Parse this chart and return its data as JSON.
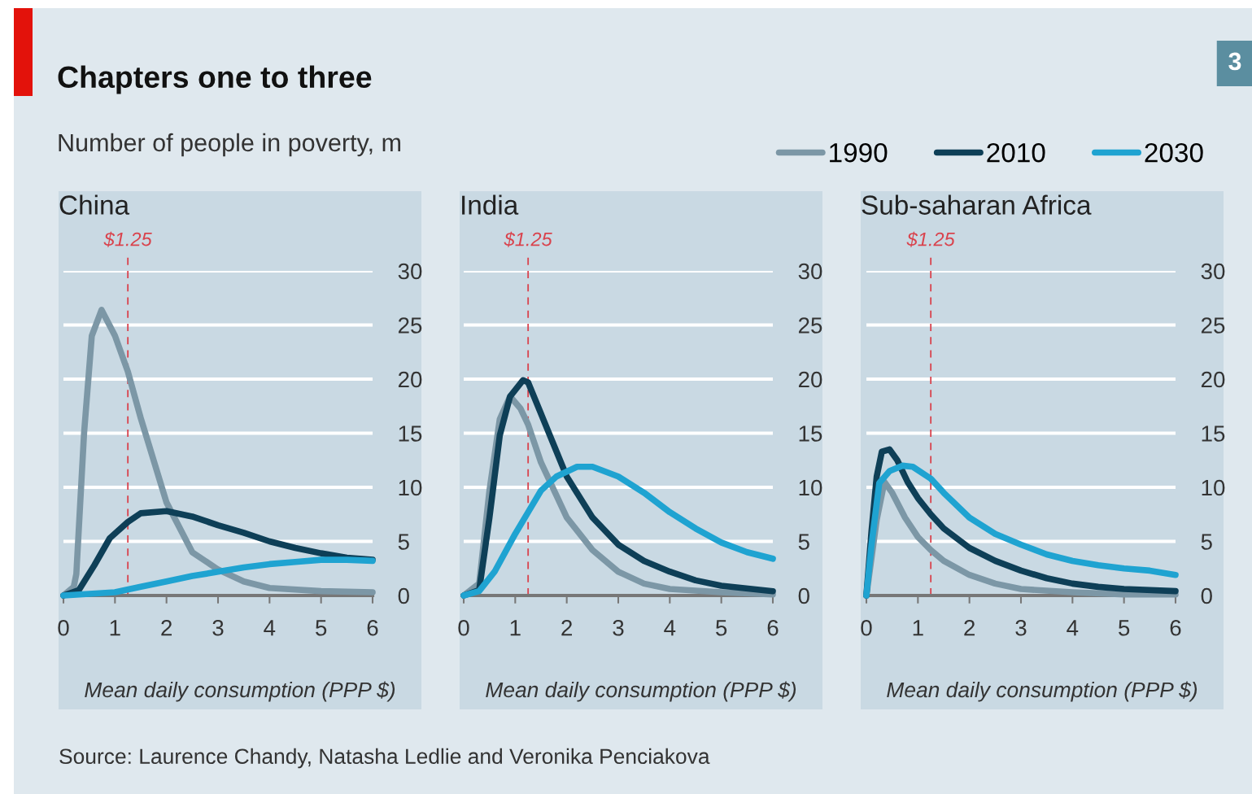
{
  "chart_data": [
    {
      "type": "line",
      "title": "China",
      "xlabel": "Mean daily consumption (PPP $)",
      "xlim": [
        0,
        6
      ],
      "xticks": [
        0,
        1,
        2,
        3,
        4,
        5,
        6
      ],
      "ylim": [
        0,
        30
      ],
      "yticks": [
        0,
        5,
        10,
        15,
        20,
        25,
        30
      ],
      "grid": "y",
      "legend": "top right",
      "ref_lines": [
        {
          "axis": "x",
          "value": 1.25,
          "label": "$1.25",
          "color": "#d9434d",
          "line_style": "dashed"
        }
      ],
      "annotations": [
        "Chapters one to three",
        "Number of people in poverty, m",
        "Source: Laurence Chandy, Natasha Ledlie and Veronika Penciakova",
        "3"
      ],
      "series": [
        {
          "name": "1990",
          "color": "#7c97a6",
          "x": [
            0,
            0.2,
            0.25,
            0.4,
            0.55,
            0.74,
            1.0,
            1.25,
            1.5,
            2,
            2.5,
            3,
            3.5,
            4,
            5,
            6
          ],
          "values": [
            0,
            0.8,
            2,
            15,
            24,
            26.4,
            24,
            20.7,
            16.4,
            8.6,
            4,
            2.4,
            1.3,
            0.7,
            0.4,
            0.3
          ]
        },
        {
          "name": "2010",
          "color": "#0e3f57",
          "x": [
            0,
            0.3,
            0.6,
            0.9,
            1.25,
            1.5,
            2,
            2.5,
            3,
            3.5,
            4,
            4.5,
            5,
            5.5,
            6
          ],
          "values": [
            0,
            0.5,
            2.8,
            5.3,
            6.8,
            7.6,
            7.8,
            7.3,
            6.5,
            5.8,
            5,
            4.4,
            3.9,
            3.5,
            3.3
          ]
        },
        {
          "name": "2030",
          "color": "#1fa3d1",
          "x": [
            0,
            1,
            1.5,
            2,
            2.5,
            3,
            3.5,
            4,
            4.5,
            5,
            5.5,
            6
          ],
          "values": [
            0,
            0.3,
            0.8,
            1.3,
            1.8,
            2.2,
            2.6,
            2.9,
            3.1,
            3.3,
            3.3,
            3.2
          ]
        }
      ]
    },
    {
      "type": "line",
      "title": "India",
      "xlabel": "Mean daily consumption (PPP $)",
      "xlim": [
        0,
        6
      ],
      "xticks": [
        0,
        1,
        2,
        3,
        4,
        5,
        6
      ],
      "ylim": [
        0,
        30
      ],
      "yticks": [
        0,
        5,
        10,
        15,
        20,
        25,
        30
      ],
      "grid": "y",
      "ref_lines": [
        {
          "axis": "x",
          "value": 1.25,
          "label": "$1.25",
          "color": "#d9434d",
          "line_style": "dashed"
        }
      ],
      "series": [
        {
          "name": "1990",
          "color": "#7c97a6",
          "x": [
            0,
            0.3,
            0.5,
            0.7,
            0.9,
            1.1,
            1.25,
            1.5,
            2,
            2.5,
            3,
            3.5,
            4,
            5,
            6
          ],
          "values": [
            0,
            1.1,
            9.7,
            16.3,
            18.4,
            17.3,
            15.8,
            12.3,
            7.2,
            4.2,
            2.2,
            1.1,
            0.6,
            0.3,
            0.1
          ]
        },
        {
          "name": "2010",
          "color": "#0e3f57",
          "x": [
            0,
            0.3,
            0.5,
            0.7,
            0.9,
            1.15,
            1.25,
            1.5,
            2,
            2.5,
            3,
            3.5,
            4,
            4.5,
            5,
            6
          ],
          "values": [
            0,
            0.5,
            7.2,
            14.8,
            18.4,
            19.9,
            19.7,
            16.8,
            11,
            7.2,
            4.7,
            3.2,
            2.2,
            1.4,
            0.9,
            0.4
          ]
        },
        {
          "name": "2030",
          "color": "#1fa3d1",
          "x": [
            0,
            0.3,
            0.6,
            1,
            1.25,
            1.5,
            1.8,
            2.2,
            2.5,
            3,
            3.5,
            4,
            4.5,
            5,
            5.5,
            6
          ],
          "values": [
            0,
            0.4,
            2.2,
            5.7,
            7.7,
            9.7,
            11,
            11.9,
            11.9,
            11,
            9.5,
            7.7,
            6.2,
            4.9,
            4,
            3.4
          ]
        }
      ]
    },
    {
      "type": "line",
      "title": "Sub-saharan Africa",
      "xlabel": "Mean daily consumption (PPP $)",
      "xlim": [
        0,
        6
      ],
      "xticks": [
        0,
        1,
        2,
        3,
        4,
        5,
        6
      ],
      "ylim": [
        0,
        30
      ],
      "yticks": [
        0,
        5,
        10,
        15,
        20,
        25,
        30
      ],
      "grid": "y",
      "ref_lines": [
        {
          "axis": "x",
          "value": 1.25,
          "label": "$1.25",
          "color": "#d9434d",
          "line_style": "dashed"
        }
      ],
      "series": [
        {
          "name": "1990",
          "color": "#7c97a6",
          "x": [
            0,
            0.2,
            0.35,
            0.5,
            0.75,
            1,
            1.25,
            1.5,
            2,
            2.5,
            3,
            4,
            5,
            6
          ],
          "values": [
            0,
            7,
            10.5,
            9.5,
            7.2,
            5.4,
            4.2,
            3.2,
            1.9,
            1.1,
            0.6,
            0.3,
            0.1,
            0.1
          ]
        },
        {
          "name": "2010",
          "color": "#0e3f57",
          "x": [
            0,
            0.1,
            0.2,
            0.3,
            0.45,
            0.6,
            0.8,
            1,
            1.25,
            1.5,
            2,
            2.5,
            3,
            3.5,
            4,
            4.5,
            5,
            6
          ],
          "values": [
            0,
            6,
            11,
            13.3,
            13.5,
            12.5,
            10.5,
            9,
            7.5,
            6.2,
            4.4,
            3.2,
            2.3,
            1.6,
            1.1,
            0.8,
            0.6,
            0.4
          ]
        },
        {
          "name": "2030",
          "color": "#1fa3d1",
          "x": [
            0,
            0.1,
            0.25,
            0.45,
            0.7,
            0.9,
            1.25,
            1.5,
            2,
            2.5,
            3,
            3.5,
            4,
            4.5,
            5,
            5.5,
            6
          ],
          "values": [
            0,
            4.7,
            10.4,
            11.5,
            12,
            11.9,
            10.8,
            9.5,
            7.2,
            5.7,
            4.7,
            3.8,
            3.2,
            2.8,
            2.5,
            2.3,
            1.9
          ]
        }
      ]
    }
  ]
}
